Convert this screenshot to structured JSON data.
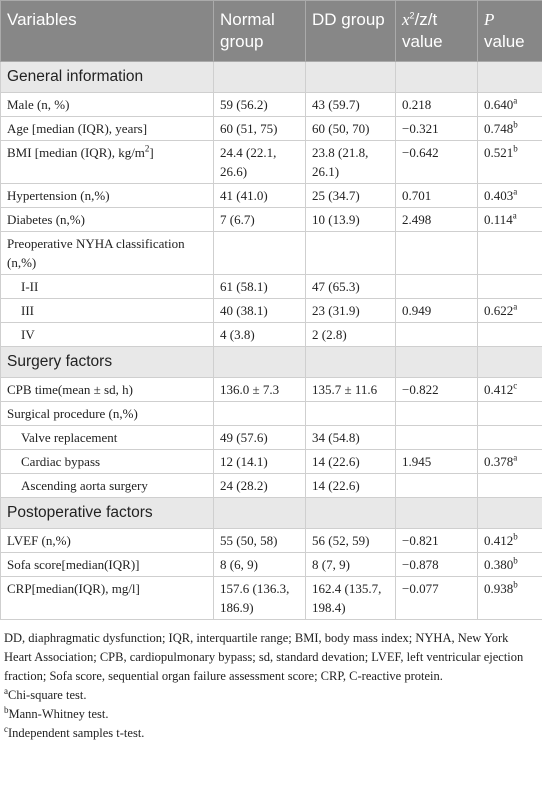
{
  "header": {
    "cells": [
      "Variables",
      "Normal group",
      "DD group",
      {
        "base": "x",
        "sup": "2",
        "rest": "/z/t value"
      },
      {
        "base": "P",
        "rest": " value"
      }
    ]
  },
  "sections": [
    {
      "title": "General information",
      "rows": [
        {
          "variable": "Male (n, %)",
          "normal": "59 (56.2)",
          "dd": "43 (59.7)",
          "stat": "0.218",
          "p": "0.640",
          "p_note": "a"
        },
        {
          "variable": "Age [median (IQR), years]",
          "normal": "60 (51, 75)",
          "dd": "60 (50, 70)",
          "stat": "−0.321",
          "p": "0.748",
          "p_note": "b"
        },
        {
          "variable": "BMI [median (IQR), kg/m",
          "variable_sup": "2",
          "variable_end": "]",
          "normal": "24.4 (22.1, 26.6)",
          "dd": "23.8 (21.8, 26.1)",
          "stat": "−0.642",
          "p": "0.521",
          "p_note": "b"
        },
        {
          "variable": "Hypertension (n,%)",
          "normal": "41 (41.0)",
          "dd": "25 (34.7)",
          "stat": "0.701",
          "p": "0.403",
          "p_note": "a"
        },
        {
          "variable": "Diabetes (n,%)",
          "normal": "7 (6.7)",
          "dd": "10 (13.9)",
          "stat": "2.498",
          "p": "0.114",
          "p_note": "a"
        },
        {
          "variable": "Preoperative NYHA classification (n,%)"
        },
        {
          "variable": "I-II",
          "sub": true,
          "normal": "61 (58.1)",
          "dd": "47 (65.3)"
        },
        {
          "variable": "III",
          "sub": true,
          "normal": "40 (38.1)",
          "dd": "23 (31.9)",
          "stat": "0.949",
          "p": "0.622",
          "p_note": "a"
        },
        {
          "variable": "IV",
          "sub": true,
          "normal": "4 (3.8)",
          "dd": "2 (2.8)"
        }
      ]
    },
    {
      "title": "Surgery factors",
      "rows": [
        {
          "variable": "CPB time(mean ± sd, h)",
          "normal": "136.0 ± 7.3",
          "dd": "135.7 ± 11.6",
          "stat": "−0.822",
          "p": "0.412",
          "p_note": "c"
        },
        {
          "variable": "Surgical procedure (n,%)"
        },
        {
          "variable": "Valve replacement",
          "sub": true,
          "normal": "49 (57.6)",
          "dd": "34 (54.8)"
        },
        {
          "variable": "Cardiac bypass",
          "sub": true,
          "normal": "12 (14.1)",
          "dd": "14 (22.6)",
          "stat": "1.945",
          "p": "0.378",
          "p_note": "a"
        },
        {
          "variable": "Ascending aorta surgery",
          "sub": true,
          "normal": "24 (28.2)",
          "dd": "14 (22.6)"
        }
      ]
    },
    {
      "title": "Postoperative factors",
      "rows": [
        {
          "variable": "LVEF (n,%)",
          "normal": "55 (50, 58)",
          "dd": "56 (52, 59)",
          "stat": "−0.821",
          "p": "0.412",
          "p_note": "b"
        },
        {
          "variable": "Sofa score[median(IQR)]",
          "normal": "8 (6, 9)",
          "dd": "8 (7, 9)",
          "stat": "−0.878",
          "p": "0.380",
          "p_note": "b"
        },
        {
          "variable": "CRP[median(IQR), mg/l]",
          "normal": "157.6 (136.3, 186.9)",
          "dd": "162.4 (135.7, 198.4)",
          "stat": "−0.077",
          "p": "0.938",
          "p_note": "b"
        }
      ]
    }
  ],
  "footnote": "DD, diaphragmatic dysfunction; IQR, interquartile range; BMI, body mass index; NYHA, New York Heart Association; CPB, cardiopulmonary bypass; sd, standard devation; LVEF, left ventricular ejection fraction; Sofa score, sequential organ failure assessment score; CRP, C-reactive protein.",
  "notes": [
    {
      "mark": "a",
      "text": "Chi-square test."
    },
    {
      "mark": "b",
      "text": "Mann-Whitney test."
    },
    {
      "mark": "c",
      "text": "Independent samples t-test."
    }
  ]
}
